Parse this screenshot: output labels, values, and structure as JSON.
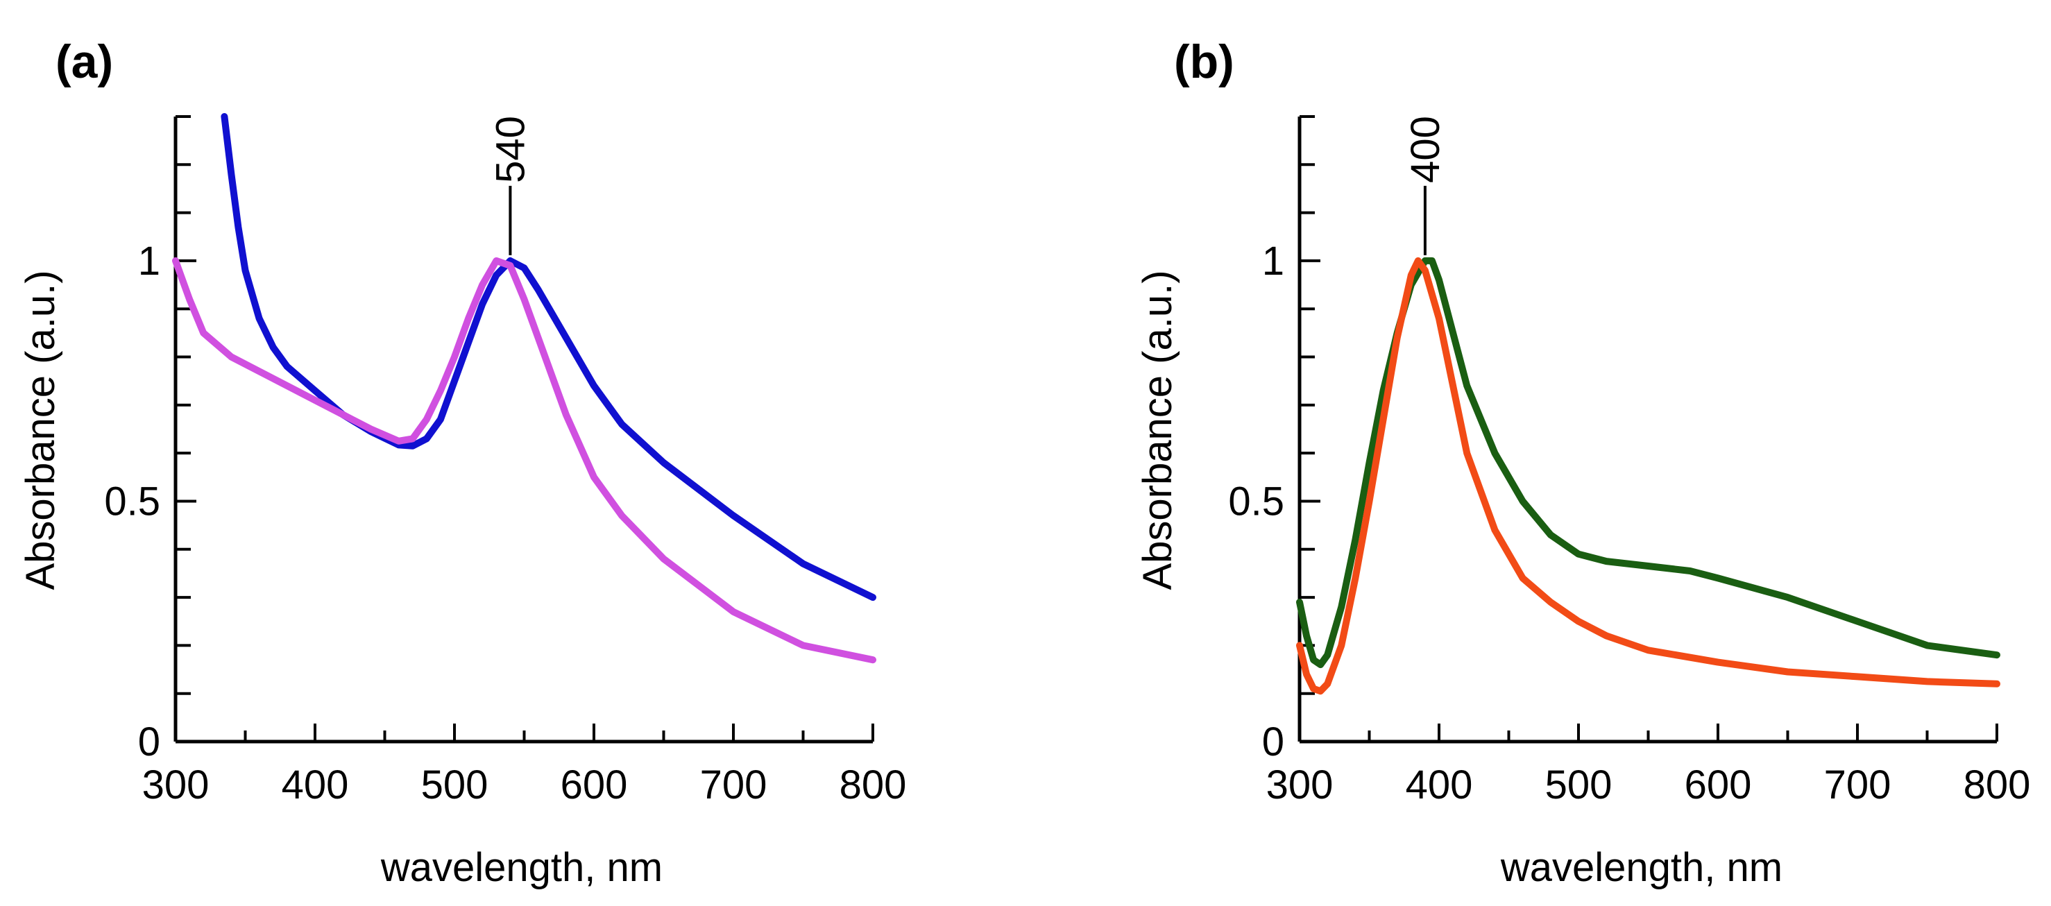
{
  "chart_data": [
    {
      "panel_label": "(a)",
      "type": "line",
      "xlabel": "wavelength, nm",
      "ylabel": "Absorbance (a.u.)",
      "xlim": [
        300,
        800
      ],
      "ylim": [
        0,
        1.3
      ],
      "xticks": [
        300,
        400,
        500,
        600,
        700,
        800
      ],
      "xtick_labels": [
        "300",
        "400",
        "500",
        "600",
        "700",
        "800"
      ],
      "yticks": [
        0,
        0.5,
        1
      ],
      "ytick_labels": [
        "0",
        "0.5",
        "1"
      ],
      "y_minor_tick_step": 0.1,
      "x_minor_tick_step": 50,
      "annotation": {
        "text": "540",
        "x": 540,
        "y": 1.0
      },
      "series": [
        {
          "name": "blue",
          "color": "#1010d0",
          "x": [
            335,
            340,
            345,
            350,
            360,
            370,
            380,
            400,
            420,
            440,
            460,
            470,
            480,
            490,
            500,
            510,
            520,
            530,
            540,
            550,
            560,
            580,
            600,
            620,
            650,
            700,
            750,
            800
          ],
          "y": [
            1.3,
            1.18,
            1.07,
            0.98,
            0.88,
            0.82,
            0.78,
            0.73,
            0.68,
            0.645,
            0.617,
            0.615,
            0.63,
            0.67,
            0.75,
            0.83,
            0.91,
            0.97,
            1.0,
            0.985,
            0.94,
            0.84,
            0.74,
            0.66,
            0.58,
            0.47,
            0.37,
            0.3
          ]
        },
        {
          "name": "magenta",
          "color": "#d050e0",
          "x": [
            300,
            310,
            320,
            340,
            360,
            400,
            420,
            440,
            460,
            470,
            480,
            490,
            500,
            510,
            520,
            530,
            540,
            550,
            560,
            580,
            600,
            620,
            650,
            700,
            750,
            800
          ],
          "y": [
            1.0,
            0.92,
            0.85,
            0.8,
            0.77,
            0.71,
            0.68,
            0.65,
            0.625,
            0.63,
            0.67,
            0.73,
            0.8,
            0.88,
            0.95,
            1.0,
            0.99,
            0.92,
            0.84,
            0.68,
            0.55,
            0.47,
            0.38,
            0.27,
            0.2,
            0.17
          ]
        }
      ]
    },
    {
      "panel_label": "(b)",
      "type": "line",
      "xlabel": "wavelength, nm",
      "ylabel": "Absorbance (a.u.)",
      "xlim": [
        300,
        800
      ],
      "ylim": [
        0,
        1.3
      ],
      "xticks": [
        300,
        400,
        500,
        600,
        700,
        800
      ],
      "xtick_labels": [
        "300",
        "400",
        "500",
        "600",
        "700",
        "800"
      ],
      "yticks": [
        0,
        0.5,
        1
      ],
      "ytick_labels": [
        "0",
        "0.5",
        "1"
      ],
      "y_minor_tick_step": 0.1,
      "x_minor_tick_step": 50,
      "annotation": {
        "text": "400",
        "x": 390,
        "y": 1.0
      },
      "series": [
        {
          "name": "green",
          "color": "#1a5e12",
          "x": [
            300,
            305,
            310,
            315,
            320,
            330,
            340,
            350,
            360,
            370,
            380,
            390,
            395,
            400,
            410,
            420,
            440,
            460,
            480,
            500,
            520,
            550,
            580,
            600,
            650,
            700,
            750,
            800
          ],
          "y": [
            0.29,
            0.22,
            0.17,
            0.16,
            0.18,
            0.28,
            0.42,
            0.58,
            0.73,
            0.85,
            0.95,
            1.0,
            1.0,
            0.96,
            0.85,
            0.74,
            0.6,
            0.5,
            0.43,
            0.39,
            0.375,
            0.365,
            0.355,
            0.34,
            0.3,
            0.25,
            0.2,
            0.18
          ]
        },
        {
          "name": "orange-red",
          "color": "#f24b16",
          "x": [
            300,
            305,
            310,
            315,
            320,
            330,
            340,
            350,
            360,
            370,
            380,
            385,
            390,
            400,
            410,
            420,
            440,
            460,
            480,
            500,
            520,
            550,
            600,
            650,
            700,
            750,
            800
          ],
          "y": [
            0.2,
            0.14,
            0.11,
            0.105,
            0.12,
            0.2,
            0.34,
            0.5,
            0.67,
            0.84,
            0.97,
            1.0,
            0.98,
            0.88,
            0.74,
            0.6,
            0.44,
            0.34,
            0.29,
            0.25,
            0.22,
            0.19,
            0.165,
            0.145,
            0.135,
            0.125,
            0.12
          ]
        }
      ]
    }
  ]
}
